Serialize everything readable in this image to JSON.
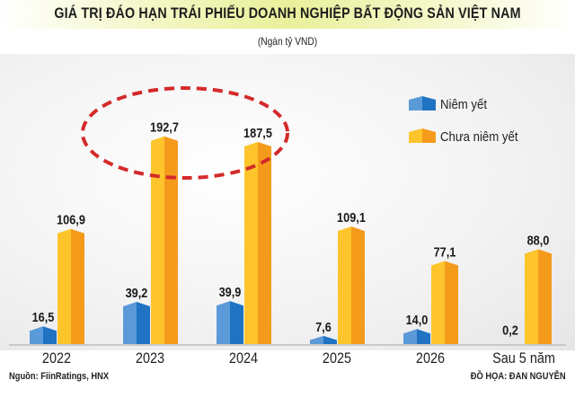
{
  "chart_data": {
    "type": "bar",
    "title": "GIÁ TRỊ ĐÁO HẠN TRÁI PHIẾU DOANH NGHIỆP BẤT ĐỘNG SẢN VIỆT NAM",
    "subtitle": "(Ngàn tỷ VND)",
    "xlabel": "",
    "ylabel": "",
    "ylim": [
      0,
      200
    ],
    "grid": false,
    "legend_position": "top-right",
    "categories": [
      "2022",
      "2023",
      "2024",
      "2025",
      "2026",
      "Sau 5 năm"
    ],
    "series": [
      {
        "name": "Niêm yết",
        "color": "#3b86d0",
        "values": [
          16.5,
          39.2,
          39.9,
          7.6,
          14.0,
          0.2
        ],
        "labels": [
          "16,5",
          "39,2",
          "39,9",
          "7,6",
          "14,0",
          "0,2"
        ]
      },
      {
        "name": "Chưa niêm yết",
        "color": "#fbb316",
        "values": [
          106.9,
          192.7,
          187.5,
          109.1,
          77.1,
          88.0
        ],
        "labels": [
          "106,9",
          "192,7",
          "187,5",
          "109,1",
          "77,1",
          "88,0"
        ]
      }
    ],
    "annotation": "red dashed ellipse highlighting 2023 and 2024",
    "annotation_color": "#d42a2a"
  },
  "footer": {
    "source": "Nguồn: FiinRatings, HNX",
    "credit": "ĐỒ HỌA: ĐAN NGUYỄN"
  }
}
